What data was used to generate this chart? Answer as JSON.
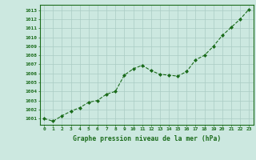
{
  "x": [
    0,
    1,
    2,
    3,
    4,
    5,
    6,
    7,
    8,
    9,
    10,
    11,
    12,
    13,
    14,
    15,
    16,
    17,
    18,
    19,
    20,
    21,
    22,
    23
  ],
  "y": [
    1001.0,
    1000.7,
    1001.3,
    1001.8,
    1002.2,
    1002.8,
    1003.0,
    1003.7,
    1004.0,
    1005.8,
    1006.5,
    1006.9,
    1006.3,
    1005.9,
    1005.8,
    1005.7,
    1006.2,
    1007.5,
    1008.0,
    1009.0,
    1010.2,
    1011.1,
    1012.0,
    1013.1
  ],
  "line_color": "#1a6b1a",
  "marker": "D",
  "marker_size": 2.0,
  "bg_color": "#cce8e0",
  "grid_color": "#aaccC4",
  "ylabel_ticks": [
    1001,
    1002,
    1003,
    1004,
    1005,
    1006,
    1007,
    1008,
    1009,
    1010,
    1011,
    1012,
    1013
  ],
  "xlabel": "Graphe pression niveau de la mer (hPa)",
  "xlabel_color": "#1a6b1a",
  "tick_color": "#1a6b1a",
  "ylim": [
    1000.3,
    1013.6
  ],
  "xlim": [
    -0.5,
    23.5
  ]
}
